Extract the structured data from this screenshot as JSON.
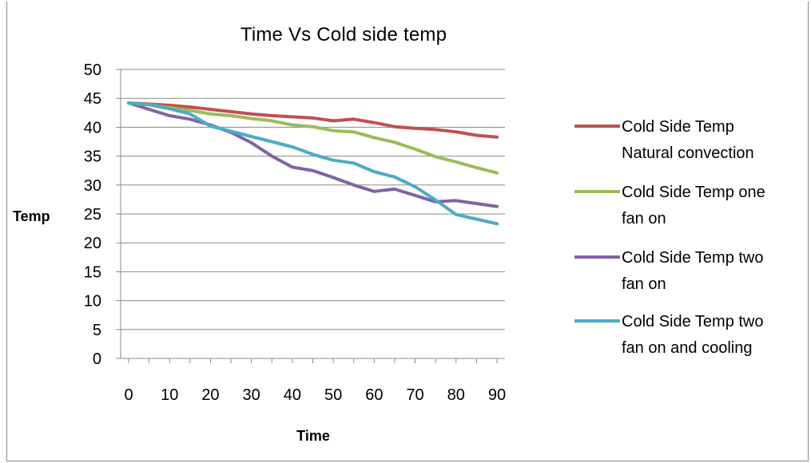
{
  "chart_data": {
    "type": "line",
    "title": "Time Vs Cold side temp",
    "xlabel": "Time",
    "ylabel": "Temp",
    "xlim": [
      0,
      90
    ],
    "ylim": [
      0,
      50
    ],
    "x_ticks": [
      0,
      10,
      20,
      30,
      40,
      50,
      60,
      70,
      80,
      90
    ],
    "y_ticks": [
      0,
      5,
      10,
      15,
      20,
      25,
      30,
      35,
      40,
      45,
      50
    ],
    "grid": "horizontal",
    "legend_position": "right",
    "x": [
      0,
      5,
      10,
      15,
      20,
      25,
      30,
      35,
      40,
      45,
      50,
      55,
      60,
      65,
      70,
      75,
      80,
      85,
      90
    ],
    "series": [
      {
        "name": "Cold Side Temp Natural convection",
        "legend_lines": [
          "Cold Side Temp",
          "Natural convection"
        ],
        "color": "#c0504d",
        "values": [
          44.2,
          44.0,
          43.8,
          43.5,
          43.1,
          42.7,
          42.3,
          42.0,
          41.8,
          41.6,
          41.1,
          41.4,
          40.8,
          40.1,
          39.8,
          39.6,
          39.2,
          38.6,
          38.3
        ]
      },
      {
        "name": "Cold Side Temp one fan on",
        "legend_lines": [
          "Cold Side Temp one",
          "fan on"
        ],
        "color": "#9bbb59",
        "values": [
          44.2,
          43.9,
          43.4,
          42.9,
          42.3,
          42.0,
          41.5,
          41.1,
          40.4,
          40.1,
          39.4,
          39.2,
          38.2,
          37.4,
          36.2,
          34.9,
          34.0,
          33.0,
          32.1
        ]
      },
      {
        "name": "Cold Side Temp two fan on",
        "legend_lines": [
          "Cold Side Temp two",
          "fan on"
        ],
        "color": "#8064a2",
        "values": [
          44.2,
          43.1,
          42.0,
          41.4,
          40.4,
          39.1,
          37.3,
          35.0,
          33.1,
          32.5,
          31.3,
          30.0,
          28.9,
          29.3,
          28.2,
          27.1,
          27.3,
          26.8,
          26.3
        ]
      },
      {
        "name": "Cold Side Temp two fan on and cooling",
        "legend_lines": [
          "Cold Side Temp two",
          "fan on and cooling"
        ],
        "color": "#4bacc6",
        "values": [
          44.2,
          43.9,
          43.2,
          42.3,
          40.2,
          39.3,
          38.4,
          37.5,
          36.6,
          35.3,
          34.3,
          33.8,
          32.3,
          31.4,
          29.7,
          27.4,
          24.9,
          24.1,
          23.3
        ]
      }
    ]
  }
}
